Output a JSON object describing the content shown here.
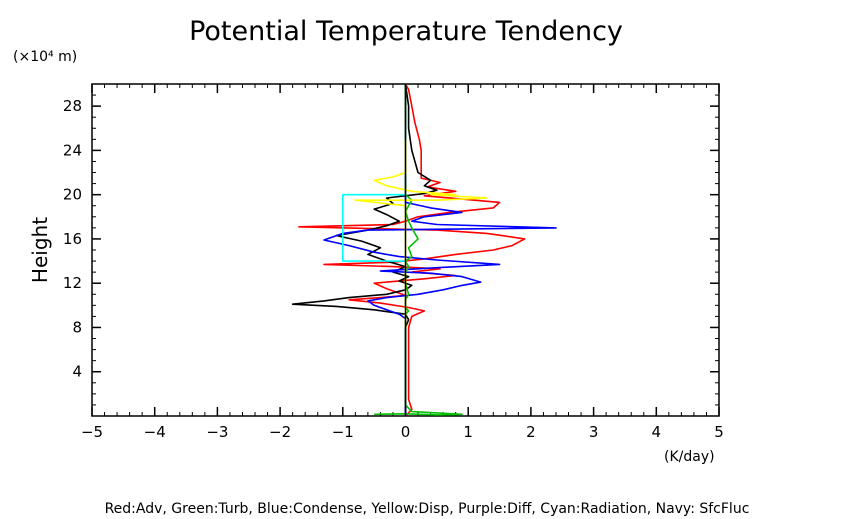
{
  "chart_data": {
    "type": "line",
    "title": "Potential Temperature Tendency",
    "ylabel": "Height",
    "y_unit": "(×10⁴ m)",
    "x_unit": "(K/day)",
    "xlim": [
      -5,
      5
    ],
    "ylim": [
      0,
      30
    ],
    "x_ticks": [
      "−5",
      "−4",
      "−3",
      "−2",
      "−1",
      "0",
      "1",
      "2",
      "3",
      "4",
      "5"
    ],
    "x_tick_values": [
      -5,
      -4,
      -3,
      -2,
      -1,
      0,
      1,
      2,
      3,
      4,
      5
    ],
    "y_ticks": [
      "4",
      "8",
      "12",
      "16",
      "20",
      "24",
      "28"
    ],
    "y_tick_values": [
      4,
      8,
      12,
      16,
      20,
      24,
      28
    ],
    "legend_text": "Red:Adv, Green:Turb, Blue:Condense, Yellow:Disp, Purple:Diff, Cyan:Radiation, Navy: SfcFluc",
    "series": [
      {
        "color": "#ff0000",
        "points": [
          [
            0,
            0
          ],
          [
            0.1,
            0.6
          ],
          [
            0.05,
            1.5
          ],
          [
            0.05,
            4
          ],
          [
            0.05,
            8
          ],
          [
            0.1,
            9
          ],
          [
            0.3,
            9.5
          ],
          [
            0.05,
            9.8
          ],
          [
            -0.4,
            10.2
          ],
          [
            -0.9,
            10.5
          ],
          [
            -0.4,
            10.7
          ],
          [
            0,
            10.9
          ],
          [
            -0.3,
            11.5
          ],
          [
            -0.5,
            12
          ],
          [
            0.3,
            12.4
          ],
          [
            0.8,
            12.7
          ],
          [
            0.1,
            13
          ],
          [
            0.55,
            13.3
          ],
          [
            -0.2,
            13.5
          ],
          [
            -1.3,
            13.7
          ],
          [
            -0.2,
            13.9
          ],
          [
            0.3,
            14.2
          ],
          [
            0.8,
            14.6
          ],
          [
            1.4,
            15
          ],
          [
            1.7,
            15.4
          ],
          [
            1.9,
            16
          ],
          [
            1.3,
            16.5
          ],
          [
            0.5,
            16.8
          ],
          [
            -1.7,
            17.1
          ],
          [
            -0.2,
            17.3
          ],
          [
            0,
            17.6
          ],
          [
            0.2,
            18
          ],
          [
            0.7,
            18.4
          ],
          [
            1.4,
            18.8
          ],
          [
            1.5,
            19.3
          ],
          [
            0.9,
            19.6
          ],
          [
            0.3,
            19.9
          ],
          [
            0.8,
            20.3
          ],
          [
            0.35,
            20.7
          ],
          [
            0.55,
            21.1
          ],
          [
            0.25,
            21.5
          ],
          [
            0.25,
            22.2
          ],
          [
            0.25,
            23
          ],
          [
            0.25,
            24
          ],
          [
            0.22,
            25
          ],
          [
            0.15,
            26.5
          ],
          [
            0.1,
            28
          ],
          [
            0.05,
            29.5
          ],
          [
            0,
            30
          ]
        ]
      },
      {
        "color": "#000000",
        "points": [
          [
            0,
            0
          ],
          [
            0,
            8
          ],
          [
            0.05,
            8.7
          ],
          [
            0,
            9.2
          ],
          [
            -0.5,
            9.6
          ],
          [
            -1.1,
            9.9
          ],
          [
            -1.8,
            10.1
          ],
          [
            -1.3,
            10.4
          ],
          [
            -0.9,
            10.7
          ],
          [
            -0.3,
            11
          ],
          [
            0,
            11.4
          ],
          [
            0.1,
            11.8
          ],
          [
            -0.1,
            12.2
          ],
          [
            0.05,
            12.6
          ],
          [
            -0.2,
            13
          ],
          [
            0,
            13.5
          ],
          [
            -0.3,
            14
          ],
          [
            -0.6,
            14.6
          ],
          [
            -0.4,
            15.2
          ],
          [
            -0.7,
            15.8
          ],
          [
            -1.1,
            16.3
          ],
          [
            -0.6,
            16.8
          ],
          [
            -0.3,
            17.2
          ],
          [
            -0.1,
            17.6
          ],
          [
            -0.3,
            18.2
          ],
          [
            -0.5,
            18.7
          ],
          [
            -0.2,
            19.2
          ],
          [
            -0.3,
            19.7
          ],
          [
            0.3,
            20.1
          ],
          [
            0.5,
            20.4
          ],
          [
            0.3,
            20.8
          ],
          [
            0.4,
            21.3
          ],
          [
            0.2,
            22
          ],
          [
            0.1,
            24
          ],
          [
            0.05,
            26
          ],
          [
            0.05,
            28
          ],
          [
            0,
            30
          ]
        ]
      },
      {
        "color": "#0000ff",
        "points": [
          [
            0,
            0
          ],
          [
            0,
            8.8
          ],
          [
            -0.1,
            9.2
          ],
          [
            -0.3,
            9.6
          ],
          [
            -0.5,
            10
          ],
          [
            -0.6,
            10.4
          ],
          [
            -0.3,
            10.7
          ],
          [
            0.2,
            11
          ],
          [
            0.6,
            11.4
          ],
          [
            0.9,
            11.8
          ],
          [
            1.2,
            12.1
          ],
          [
            0.9,
            12.6
          ],
          [
            0.4,
            12.9
          ],
          [
            -0.4,
            13.1
          ],
          [
            0.5,
            13.4
          ],
          [
            1.5,
            13.7
          ],
          [
            0.5,
            14.1
          ],
          [
            -0.1,
            14.4
          ],
          [
            -0.5,
            14.8
          ],
          [
            -0.9,
            15.4
          ],
          [
            -1.3,
            15.9
          ],
          [
            -1,
            16.5
          ],
          [
            -0.6,
            16.8
          ],
          [
            2.4,
            17
          ],
          [
            0.5,
            17.3
          ],
          [
            0.1,
            17.6
          ],
          [
            0.3,
            18
          ],
          [
            0.9,
            18.4
          ],
          [
            0.4,
            18.8
          ],
          [
            0,
            19.3
          ],
          [
            0,
            30
          ]
        ]
      },
      {
        "color": "#00c000",
        "points": [
          [
            -0.5,
            0.15
          ],
          [
            0,
            0.2
          ],
          [
            0.5,
            0.1
          ],
          [
            0.9,
            0.15
          ],
          [
            0.1,
            0.4
          ],
          [
            0,
            1
          ],
          [
            0,
            8
          ],
          [
            0,
            9.2
          ],
          [
            0.05,
            9.5
          ],
          [
            0,
            9.8
          ],
          [
            0,
            10.5
          ],
          [
            0.05,
            11
          ],
          [
            0,
            12
          ],
          [
            0,
            13
          ],
          [
            0.05,
            13.5
          ],
          [
            0,
            14
          ],
          [
            0.1,
            14.4
          ],
          [
            0.05,
            15.2
          ],
          [
            0.2,
            16
          ],
          [
            0.1,
            17
          ],
          [
            0.05,
            17.6
          ],
          [
            0,
            18.5
          ],
          [
            0.1,
            19.5
          ],
          [
            0,
            20
          ],
          [
            0,
            30
          ]
        ]
      },
      {
        "color": "#ffff00",
        "points": [
          [
            0,
            8
          ],
          [
            0,
            19
          ],
          [
            -0.8,
            19.5
          ],
          [
            0.5,
            19.5
          ],
          [
            1.3,
            19.7
          ],
          [
            0.4,
            20
          ],
          [
            0.8,
            20
          ],
          [
            0.1,
            20.3
          ],
          [
            -0.3,
            20.8
          ],
          [
            -0.5,
            21.3
          ],
          [
            -0.2,
            21.6
          ],
          [
            0,
            22
          ],
          [
            0,
            25
          ]
        ]
      },
      {
        "color": "#00ffff",
        "points": [
          [
            0,
            20
          ],
          [
            -1,
            20
          ],
          [
            -1,
            14
          ],
          [
            0,
            14
          ]
        ]
      }
    ]
  }
}
